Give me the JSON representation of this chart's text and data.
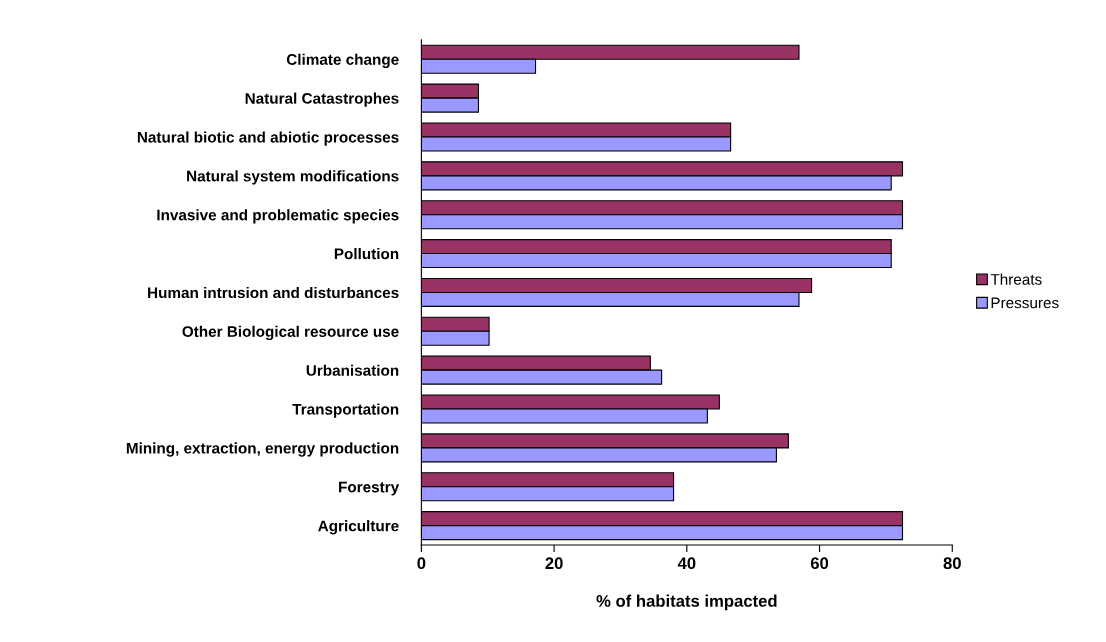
{
  "chart_data": {
    "type": "bar",
    "orientation": "horizontal",
    "xlabel": "% of habitats impacted",
    "categories": [
      "Climate change",
      "Natural Catastrophes",
      "Natural biotic and abiotic processes",
      "Natural system modifications",
      "Invasive and problematic species",
      "Pollution",
      "Human intrusion and disturbances",
      "Other Biological resource use",
      "Urbanisation",
      "Transportation",
      "Mining, extraction, energy production",
      "Forestry",
      "Agriculture"
    ],
    "series": [
      {
        "name": "Threats",
        "color": "#993366",
        "values": [
          56.9,
          8.6,
          46.6,
          72.5,
          72.5,
          70.8,
          58.8,
          10.2,
          34.5,
          44.9,
          55.3,
          38.0,
          72.5
        ]
      },
      {
        "name": "Pressures",
        "color": "#9999ff",
        "values": [
          17.2,
          8.6,
          46.6,
          70.8,
          72.5,
          70.8,
          56.9,
          10.2,
          36.2,
          43.1,
          53.5,
          38.0,
          72.5
        ]
      }
    ],
    "xlim": [
      0,
      80
    ],
    "xticks": [
      0,
      20,
      40,
      60,
      80
    ],
    "grid": false,
    "legend": "right"
  }
}
